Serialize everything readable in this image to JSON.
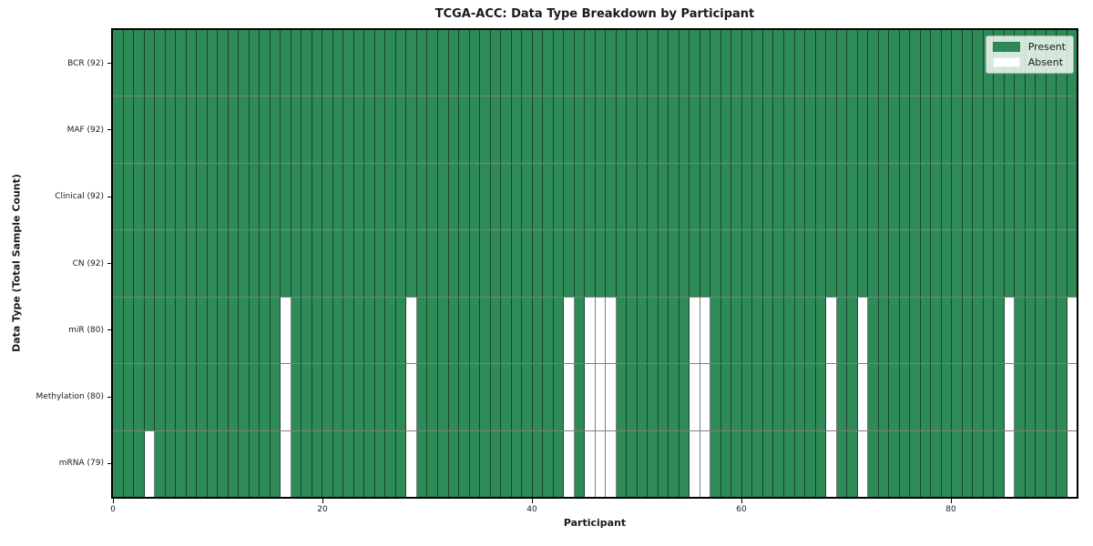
{
  "chart_data": {
    "type": "heatmap",
    "title": "TCGA-ACC: Data Type Breakdown by Participant",
    "xlabel": "Participant",
    "ylabel": "Data Type (Total Sample Count)",
    "n_participants": 92,
    "x_ticks": [
      0,
      20,
      40,
      60,
      80
    ],
    "rows": [
      {
        "label": "BCR (92)",
        "present_count": 92,
        "absent_participants": []
      },
      {
        "label": "MAF (92)",
        "present_count": 92,
        "absent_participants": []
      },
      {
        "label": "Clinical (92)",
        "present_count": 92,
        "absent_participants": []
      },
      {
        "label": "CN (92)",
        "present_count": 92,
        "absent_participants": []
      },
      {
        "label": "miR (80)",
        "present_count": 80,
        "absent_participants": [
          16,
          28,
          43,
          45,
          46,
          47,
          55,
          56,
          68,
          71,
          85,
          91
        ]
      },
      {
        "label": "Methylation (80)",
        "present_count": 80,
        "absent_participants": [
          16,
          28,
          43,
          45,
          46,
          47,
          55,
          56,
          68,
          71,
          85,
          91
        ]
      },
      {
        "label": "mRNA (79)",
        "present_count": 79,
        "absent_participants": [
          3,
          16,
          28,
          43,
          45,
          46,
          47,
          55,
          56,
          68,
          71,
          85,
          91
        ]
      }
    ],
    "legend": [
      {
        "label": "Present",
        "color": "#2e8b57"
      },
      {
        "label": "Absent",
        "color": "#ffffff"
      }
    ],
    "legend_position": "upper right",
    "colors": {
      "present": "#2e8b57",
      "absent": "#ffffff",
      "grid_line": "rgba(0,0,0,0.5)",
      "plot_border": "#000000"
    },
    "grid": true
  }
}
